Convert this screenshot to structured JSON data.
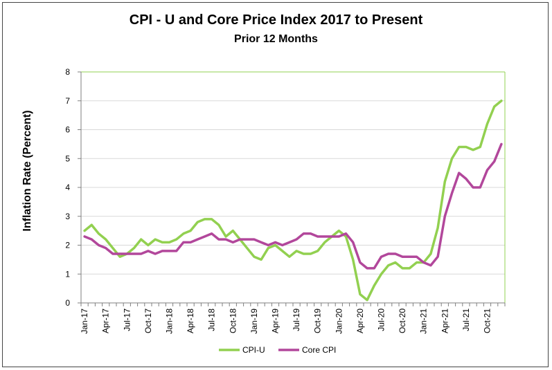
{
  "chart_data": {
    "type": "line",
    "title": "CPI - U and Core Price Index 2017 to Present",
    "subtitle": "Prior 12 Months",
    "ylabel": "Inflation Rate (Percent)",
    "xlabel": "",
    "ylim": [
      0,
      8
    ],
    "yticks": [
      0,
      1,
      2,
      3,
      4,
      5,
      6,
      7,
      8
    ],
    "grid": true,
    "legend_position": "bottom",
    "x_tick_labels": [
      {
        "index": 0,
        "label": "Jan-17"
      },
      {
        "index": 3,
        "label": "Apr-17"
      },
      {
        "index": 6,
        "label": "Jul-17"
      },
      {
        "index": 9,
        "label": "Oct-17"
      },
      {
        "index": 12,
        "label": "Jan-18"
      },
      {
        "index": 15,
        "label": "Apr-18"
      },
      {
        "index": 18,
        "label": "Jul-18"
      },
      {
        "index": 21,
        "label": "Oct-18"
      },
      {
        "index": 24,
        "label": "Jan-19"
      },
      {
        "index": 27,
        "label": "Apr-19"
      },
      {
        "index": 30,
        "label": "Jul-19"
      },
      {
        "index": 33,
        "label": "Oct-19"
      },
      {
        "index": 36,
        "label": "Jan-20"
      },
      {
        "index": 39,
        "label": "Apr-20"
      },
      {
        "index": 42,
        "label": "Jul-20"
      },
      {
        "index": 45,
        "label": "Oct-20"
      },
      {
        "index": 48,
        "label": "Jan-21"
      },
      {
        "index": 51,
        "label": "Apr-21"
      },
      {
        "index": 54,
        "label": "Jul-21"
      },
      {
        "index": 57,
        "label": "Oct-21"
      }
    ],
    "categories": [
      "Jan-17",
      "Feb-17",
      "Mar-17",
      "Apr-17",
      "May-17",
      "Jun-17",
      "Jul-17",
      "Aug-17",
      "Sep-17",
      "Oct-17",
      "Nov-17",
      "Dec-17",
      "Jan-18",
      "Feb-18",
      "Mar-18",
      "Apr-18",
      "May-18",
      "Jun-18",
      "Jul-18",
      "Aug-18",
      "Sep-18",
      "Oct-18",
      "Nov-18",
      "Dec-18",
      "Jan-19",
      "Feb-19",
      "Mar-19",
      "Apr-19",
      "May-19",
      "Jun-19",
      "Jul-19",
      "Aug-19",
      "Sep-19",
      "Oct-19",
      "Nov-19",
      "Dec-19",
      "Jan-20",
      "Feb-20",
      "Mar-20",
      "Apr-20",
      "May-20",
      "Jun-20",
      "Jul-20",
      "Aug-20",
      "Sep-20",
      "Oct-20",
      "Nov-20",
      "Dec-20",
      "Jan-21",
      "Feb-21",
      "Mar-21",
      "Apr-21",
      "May-21",
      "Jun-21",
      "Jul-21",
      "Aug-21",
      "Sep-21",
      "Oct-21",
      "Nov-21",
      "Dec-21"
    ],
    "series": [
      {
        "name": "CPI-U",
        "color": "#92d050",
        "values": [
          2.5,
          2.7,
          2.4,
          2.2,
          1.9,
          1.6,
          1.7,
          1.9,
          2.2,
          2.0,
          2.2,
          2.1,
          2.1,
          2.2,
          2.4,
          2.5,
          2.8,
          2.9,
          2.9,
          2.7,
          2.3,
          2.5,
          2.2,
          1.9,
          1.6,
          1.5,
          1.9,
          2.0,
          1.8,
          1.6,
          1.8,
          1.7,
          1.7,
          1.8,
          2.1,
          2.3,
          2.5,
          2.3,
          1.5,
          0.3,
          0.1,
          0.6,
          1.0,
          1.3,
          1.4,
          1.2,
          1.2,
          1.4,
          1.4,
          1.7,
          2.6,
          4.2,
          5.0,
          5.4,
          5.4,
          5.3,
          5.4,
          6.2,
          6.8,
          7.0
        ]
      },
      {
        "name": "Core CPI",
        "color": "#b2479b",
        "values": [
          2.3,
          2.2,
          2.0,
          1.9,
          1.7,
          1.7,
          1.7,
          1.7,
          1.7,
          1.8,
          1.7,
          1.8,
          1.8,
          1.8,
          2.1,
          2.1,
          2.2,
          2.3,
          2.4,
          2.2,
          2.2,
          2.1,
          2.2,
          2.2,
          2.2,
          2.1,
          2.0,
          2.1,
          2.0,
          2.1,
          2.2,
          2.4,
          2.4,
          2.3,
          2.3,
          2.3,
          2.3,
          2.4,
          2.1,
          1.4,
          1.2,
          1.2,
          1.6,
          1.7,
          1.7,
          1.6,
          1.6,
          1.6,
          1.4,
          1.3,
          1.6,
          3.0,
          3.8,
          4.5,
          4.3,
          4.0,
          4.0,
          4.6,
          4.9,
          5.5
        ]
      }
    ]
  },
  "legend": {
    "items": [
      {
        "label": "CPI-U",
        "color": "#92d050"
      },
      {
        "label": "Core CPI",
        "color": "#b2479b"
      }
    ]
  }
}
